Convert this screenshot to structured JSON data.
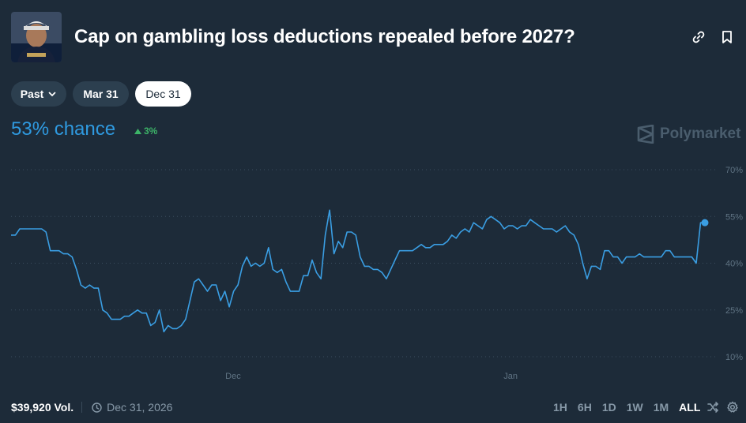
{
  "market": {
    "title": "Cap on gambling loss deductions repealed before 2027?",
    "chance_label": "53% chance",
    "change_label": "3%",
    "change_direction": "up"
  },
  "header_icons": [
    "link-icon",
    "bookmark-icon"
  ],
  "date_pills": {
    "past_label": "Past",
    "items": [
      "Mar 31",
      "Dec 31"
    ],
    "selected": "Dec 31"
  },
  "brand": {
    "name": "Polymarket"
  },
  "chart_data": {
    "type": "line",
    "series": [
      {
        "values": [
          49,
          49,
          51,
          51,
          51,
          51,
          51,
          51,
          50,
          44,
          44,
          44,
          43,
          43,
          42,
          38,
          33,
          32,
          33,
          32,
          32,
          25,
          24,
          22,
          22,
          22,
          23,
          23,
          24,
          25,
          24,
          24,
          20,
          21,
          25,
          18,
          20,
          19,
          19,
          20,
          22,
          28,
          34,
          35,
          33,
          31,
          33,
          33,
          28,
          31,
          26,
          31,
          33,
          39,
          42,
          39,
          40,
          39,
          40,
          45,
          38,
          37,
          38,
          34,
          31,
          31,
          31,
          36,
          36,
          41,
          37,
          35,
          49,
          57,
          43,
          47,
          45,
          50,
          50,
          49,
          42,
          39,
          39,
          38,
          38,
          37,
          35,
          38,
          41,
          44,
          44,
          44,
          44,
          45,
          46,
          45,
          45,
          46,
          46,
          46,
          47,
          49,
          48,
          50,
          51,
          50,
          53,
          52,
          51,
          54,
          55,
          54,
          53,
          51,
          52,
          52,
          51,
          52,
          52,
          54,
          53,
          52,
          51,
          51,
          51,
          50,
          51,
          52,
          50,
          49,
          46,
          40,
          35,
          39,
          39,
          38,
          44,
          44,
          42,
          42,
          40,
          42,
          42,
          42,
          43,
          42,
          42,
          42,
          42,
          42,
          44,
          44,
          42,
          42,
          42,
          42,
          42,
          40,
          53,
          53
        ],
        "line_color": "#3a9ee3"
      }
    ],
    "x_labels": [
      "Dec",
      "Jan"
    ],
    "y_ticks": [
      "70%",
      "55%",
      "40%",
      "25%",
      "10%"
    ],
    "y_tick_values": [
      70,
      55,
      40,
      25,
      10
    ],
    "ylim": [
      10,
      70
    ],
    "grid": true,
    "last_value": 53
  },
  "footer": {
    "volume": "$39,920 Vol.",
    "end_date": "Dec 31, 2026",
    "ranges": [
      "1H",
      "6H",
      "1D",
      "1W",
      "1M",
      "ALL"
    ],
    "active_range": "ALL"
  },
  "colors": {
    "background": "#1d2b39",
    "accent": "#2f9ae0",
    "positive": "#3db468",
    "muted": "#8799a8"
  }
}
